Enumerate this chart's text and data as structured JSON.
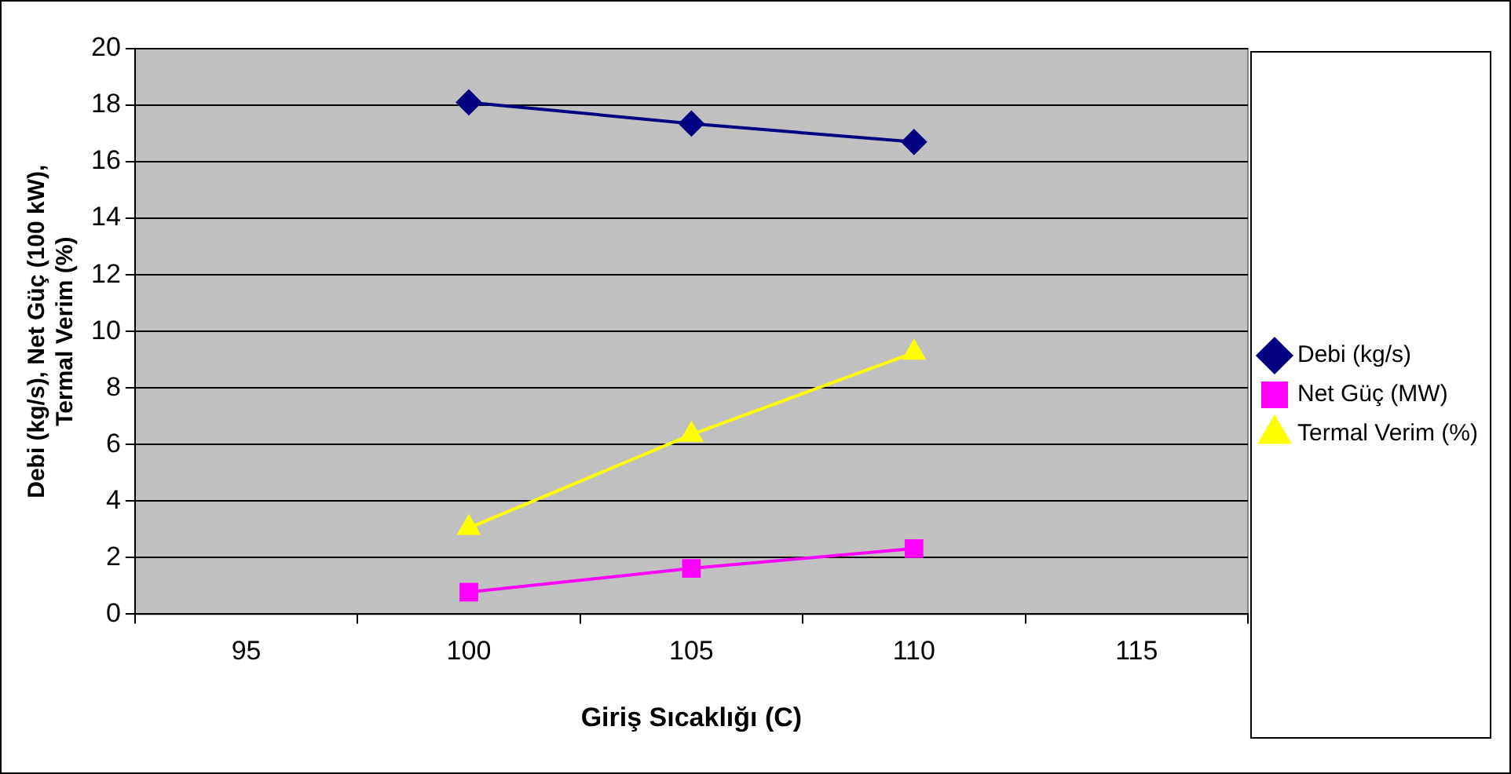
{
  "chart_data": {
    "type": "line",
    "xlabel": "Giriş Sıcaklığı (C)",
    "ylabel": "Debi (kg/s), Net Güç (100 kW), Termal Verim (%)",
    "categories": [
      "95",
      "100",
      "105",
      "110",
      "115"
    ],
    "series": [
      {
        "name": "Debi (kg/s)",
        "color": "#000080",
        "marker": "diamond",
        "values": [
          null,
          18.1,
          17.35,
          16.7,
          null
        ]
      },
      {
        "name": "Net Güç (MW)",
        "color": "#ff00ff",
        "marker": "square",
        "values": [
          null,
          0.78,
          1.62,
          2.32,
          null
        ]
      },
      {
        "name": "Termal Verim (%)",
        "color": "#ffff00",
        "marker": "triangle",
        "values": [
          null,
          3.05,
          6.35,
          9.25,
          null
        ]
      }
    ],
    "ylim": [
      0,
      20
    ],
    "yticks": [
      0,
      2,
      4,
      6,
      8,
      10,
      12,
      14,
      16,
      18,
      20
    ],
    "grid": "y",
    "legend": "right"
  }
}
